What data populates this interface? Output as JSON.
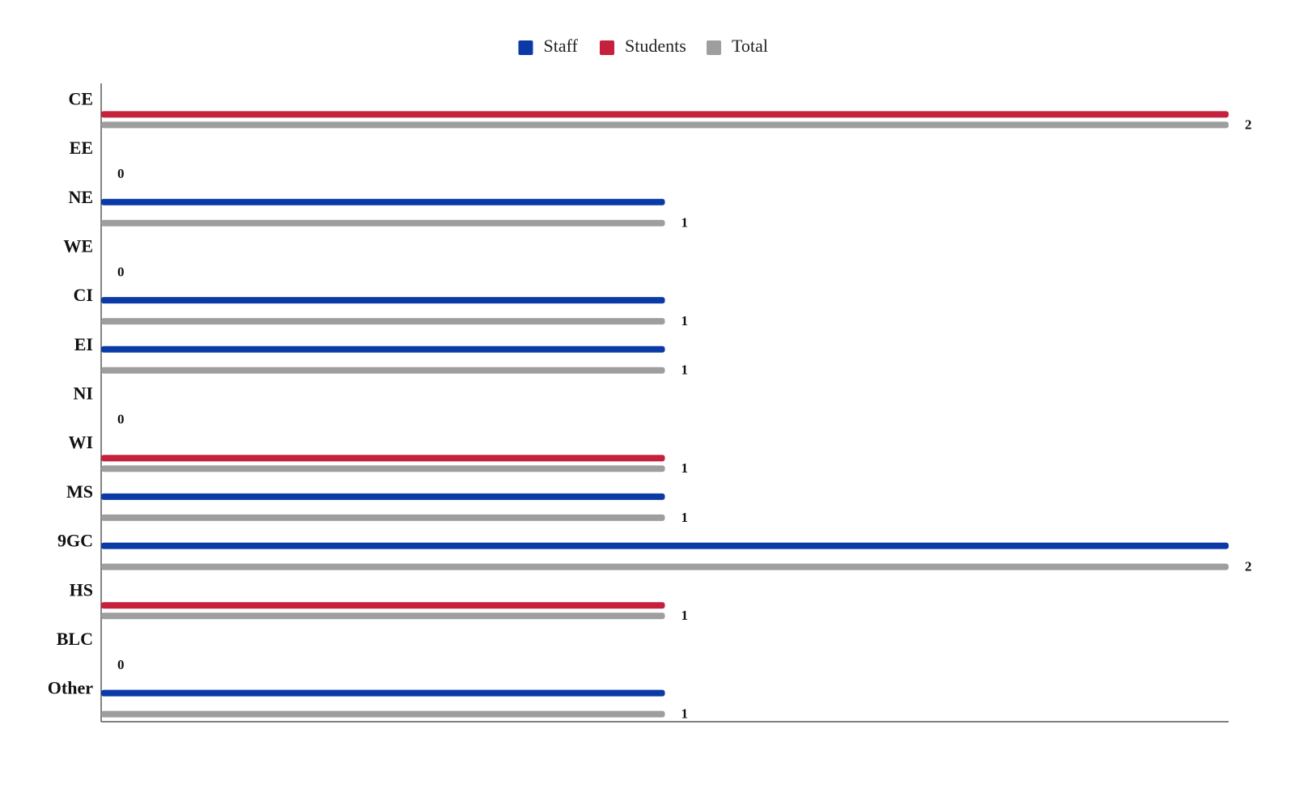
{
  "chart_data": {
    "type": "bar",
    "orientation": "horizontal",
    "categories": [
      "CE",
      "EE",
      "NE",
      "WE",
      "CI",
      "EI",
      "NI",
      "WI",
      "MS",
      "9GC",
      "HS",
      "BLC",
      "Other"
    ],
    "series": [
      {
        "name": "Staff",
        "color": "#0b3aa6",
        "values": [
          0,
          0,
          1,
          0,
          1,
          1,
          0,
          0,
          1,
          2,
          0,
          0,
          1
        ]
      },
      {
        "name": "Students",
        "color": "#c5203c",
        "values": [
          2,
          0,
          0,
          0,
          0,
          0,
          0,
          1,
          0,
          0,
          1,
          0,
          0
        ]
      },
      {
        "name": "Total",
        "color": "#9e9e9e",
        "values": [
          2,
          0,
          1,
          0,
          1,
          1,
          0,
          1,
          1,
          2,
          1,
          0,
          1
        ],
        "show_value_labels": true
      }
    ],
    "xlim": [
      0,
      2
    ],
    "legend": "top",
    "grid": false
  }
}
